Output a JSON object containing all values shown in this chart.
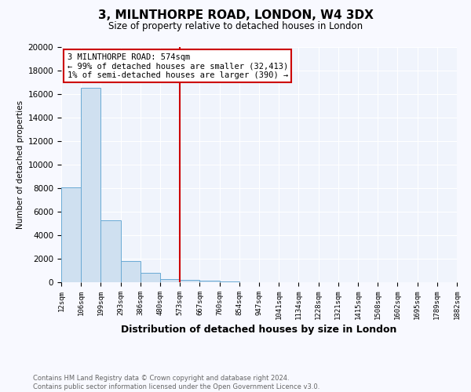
{
  "title": "3, MILNTHORPE ROAD, LONDON, W4 3DX",
  "subtitle": "Size of property relative to detached houses in London",
  "xlabel": "Distribution of detached houses by size in London",
  "ylabel": "Number of detached properties",
  "bar_color": "#cfe0f0",
  "bar_edgecolor": "#6aaad4",
  "bar_heights": [
    8100,
    16500,
    5300,
    1800,
    800,
    300,
    200,
    150,
    100,
    0,
    0,
    0,
    0,
    0,
    0,
    0,
    0,
    0,
    0,
    0
  ],
  "bin_labels": [
    "12sqm",
    "106sqm",
    "199sqm",
    "293sqm",
    "386sqm",
    "480sqm",
    "573sqm",
    "667sqm",
    "760sqm",
    "854sqm",
    "947sqm",
    "1041sqm",
    "1134sqm",
    "1228sqm",
    "1321sqm",
    "1415sqm",
    "1508sqm",
    "1602sqm",
    "1695sqm",
    "1789sqm",
    "1882sqm"
  ],
  "ylim": [
    0,
    20000
  ],
  "yticks": [
    0,
    2000,
    4000,
    6000,
    8000,
    10000,
    12000,
    14000,
    16000,
    18000,
    20000
  ],
  "red_line_x": 6,
  "annotation_title": "3 MILNTHORPE ROAD: 574sqm",
  "annotation_line1": "← 99% of detached houses are smaller (32,413)",
  "annotation_line2": "1% of semi-detached houses are larger (390) →",
  "footer_line1": "Contains HM Land Registry data © Crown copyright and database right 2024.",
  "footer_line2": "Contains public sector information licensed under the Open Government Licence v3.0.",
  "background_color": "#f8f9ff",
  "plot_bg_color": "#f0f4fc",
  "grid_color": "#ffffff",
  "red_line_color": "#cc0000",
  "annotation_box_color": "#ffffff",
  "annotation_border_color": "#cc0000",
  "n_bins": 20
}
